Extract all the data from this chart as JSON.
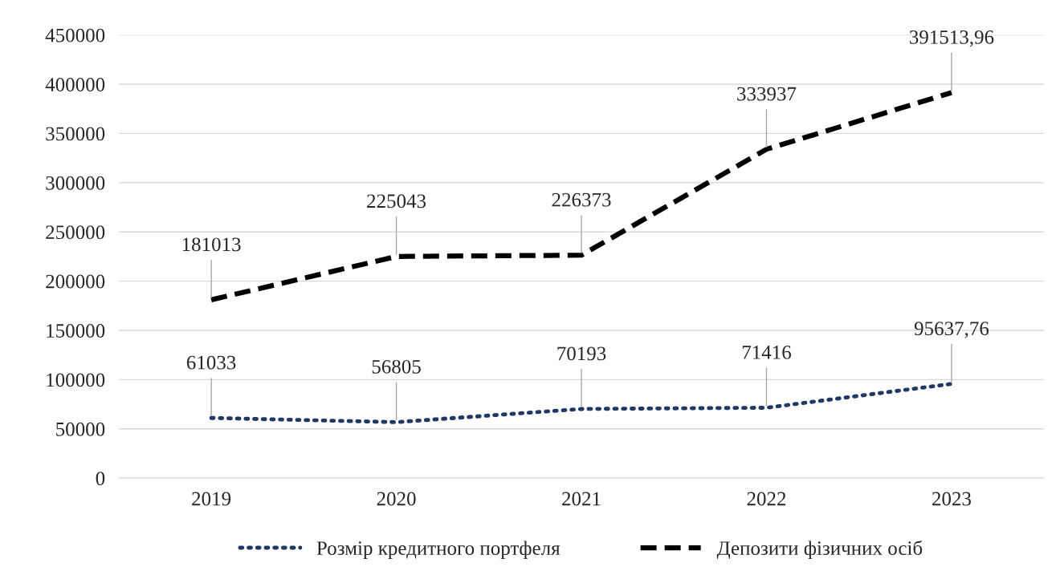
{
  "chart_data": {
    "type": "line",
    "categories": [
      "2019",
      "2020",
      "2021",
      "2022",
      "2023"
    ],
    "series": [
      {
        "name": "Розмір кредитного портфеля",
        "color": "#203864",
        "line_style": "dotted",
        "values": [
          61033,
          56805,
          70193,
          71416,
          95637.76
        ],
        "value_labels": [
          "61033",
          "56805",
          "70193",
          "71416",
          "95637,76"
        ]
      },
      {
        "name": "Депозити фізичних осіб",
        "color": "#000000",
        "line_style": "dashed",
        "values": [
          181013,
          225043,
          226373,
          333937,
          391513.96
        ],
        "value_labels": [
          "181013",
          "225043",
          "226373",
          "333937",
          "391513,96"
        ]
      }
    ],
    "ylim": [
      0,
      450000
    ],
    "yticks": [
      0,
      50000,
      100000,
      150000,
      200000,
      250000,
      300000,
      350000,
      400000,
      450000
    ],
    "grid": "y",
    "legend": "bottom"
  }
}
